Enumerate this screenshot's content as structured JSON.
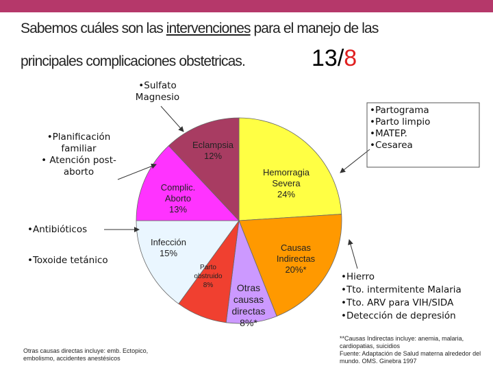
{
  "slide": {
    "title_start": "Sabemos cuáles son las ",
    "title_underlined": "intervenciones",
    "title_end": " para el manejo de las",
    "title_line2": "principales complicaciones obstetricas.",
    "page_current": "13/",
    "page_total": "8",
    "note_top": [
      "•Sulfato",
      "Magnesio"
    ],
    "note_left": [
      "•Planificación",
      "familiar",
      "• Atención post-",
      "aborto"
    ],
    "note_left2": [
      "•Antibióticos",
      "•Toxoide tetánico"
    ],
    "note_right_box": [
      "•Partograma",
      "•Parto limpio",
      "•MATEP.",
      "•Cesarea"
    ],
    "note_bottom_right": [
      "•Hierro",
      "•Tto. intermitente Malaria",
      "•Tto.  ARV para VIH/SIDA",
      "•Detección de depresión"
    ],
    "footnote_left": "Otras causas directas incluye: emb. Ectopico, embolismo, accidentes anestésicos",
    "footnote_right": [
      "**Causas Indirectas incluye: anemia, malaria, cardiopatias, suicidios",
      "Fuente: Adaptación de Salud materna alrededor del mundo. OMS. Ginebra 1997"
    ]
  },
  "chart_data": {
    "type": "pie",
    "categories": [
      "Hemorragia Severa",
      "Causas Indirectas",
      "Otras causas directas",
      "Parto obstruido",
      "Infección",
      "Complic. Aborto",
      "Eclampsia"
    ],
    "values": [
      24,
      20,
      8,
      8,
      15,
      13,
      12
    ],
    "value_labels": [
      "24%",
      "20%*",
      "8%*",
      "8%",
      "15%",
      "13%",
      "12%"
    ],
    "colors": [
      "#ffff44",
      "#ff9900",
      "#cc99ff",
      "#f04030",
      "#eaf6ff",
      "#ff33ff",
      "#a83c62"
    ]
  }
}
